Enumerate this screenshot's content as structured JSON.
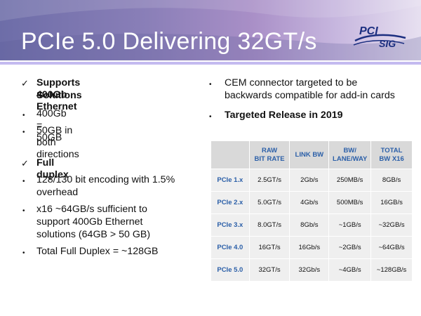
{
  "header": {
    "title": "PCIe 5.0 Delivering 32GT/s",
    "logo": {
      "text_top": "PCI",
      "text_bottom": "SIG"
    }
  },
  "left": {
    "item1": {
      "check": "✓",
      "text_line1": "Supports 400Gb Ethernet",
      "text_line2": "Solutions"
    },
    "item2": {
      "bullet": "•",
      "text": "400Gb = 50GB"
    },
    "item3": {
      "bullet": "•",
      "text": "50GB in both directions"
    },
    "item4": {
      "check": "✓",
      "text": "Full duplex"
    },
    "item5": {
      "bullet": "•",
      "text_line1": "128/130 bit encoding with 1.5%",
      "text_line2": "overhead"
    },
    "item6": {
      "bullet": "•",
      "text_line1": "x16 ~64GB/s sufficient to",
      "text_line2": "support 400Gb Ethernet",
      "text_line3": "solutions (64GB > 50 GB)"
    },
    "item7": {
      "bullet": "•",
      "text": "Total Full Duplex = ~128GB"
    }
  },
  "right": {
    "item1": {
      "bullet": "•",
      "text_line1": "CEM connector targeted to be",
      "text_line2": "backwards compatible for add-in cards"
    },
    "item2": {
      "bullet": "•",
      "text": "Targeted Release in 2019"
    }
  },
  "table": {
    "headers": {
      "raw_line1": "RAW",
      "raw_line2": "BIT RATE",
      "link": "LINK BW",
      "lane_line1": "BW/",
      "lane_line2": "LANE/WAY",
      "total_line1": "TOTAL",
      "total_line2": "BW X16"
    },
    "rows": [
      {
        "gen": "PCIe 1.x",
        "raw": "2.5GT/s",
        "link": "2Gb/s",
        "lane": "250MB/s",
        "total": "8GB/s"
      },
      {
        "gen": "PCIe 2.x",
        "raw": "5.0GT/s",
        "link": "4Gb/s",
        "lane": "500MB/s",
        "total": "16GB/s"
      },
      {
        "gen": "PCIe 3.x",
        "raw": "8.0GT/s",
        "link": "8Gb/s",
        "lane": "~1GB/s",
        "total": "~32GB/s"
      },
      {
        "gen": "PCIe 4.0",
        "raw": "16GT/s",
        "link": "16Gb/s",
        "lane": "~2GB/s",
        "total": "~64GB/s"
      },
      {
        "gen": "PCIe 5.0",
        "raw": "32GT/s",
        "link": "32Gb/s",
        "lane": "~4GB/s",
        "total": "~128GB/s"
      }
    ]
  }
}
